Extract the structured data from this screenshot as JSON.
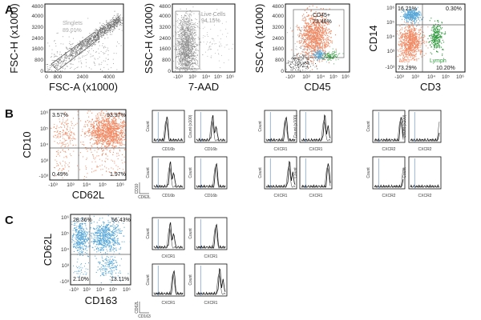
{
  "panel_labels": {
    "a": "A",
    "b": "B",
    "c": "C"
  },
  "plot1": {
    "ylabel": "FSC-H (x1000)",
    "xlabel": "FSC-A (x1000)",
    "yticks": [
      "4800",
      "4000",
      "3200",
      "2400",
      "1600",
      "800",
      "0"
    ],
    "xticks": [
      "0",
      "800",
      "2400",
      "4000"
    ],
    "gate_name": "Singlets",
    "gate_pct": "89.01%"
  },
  "plot2": {
    "ylabel": "SSC-H (x1000)",
    "xlabel": "7-AAD",
    "yticks": [
      "4800",
      "4000",
      "3200",
      "2400",
      "1600",
      "800",
      "0"
    ],
    "xticks": [
      "-10³",
      "10³",
      "10⁴",
      "10⁵",
      "10⁶"
    ],
    "gate_name": "Live Cells",
    "gate_pct": "94.15%"
  },
  "plot3": {
    "ylabel": "SSC-A (x1000)",
    "xlabel": "CD45",
    "yticks": [
      "4800",
      "4000",
      "3200",
      "2400",
      "1600",
      "800",
      "0"
    ],
    "xticks": [
      "-10³",
      "10³",
      "10⁴",
      "10⁵",
      "10⁶"
    ],
    "gate_name": "CD45+",
    "gate_pct": "73.46%"
  },
  "plot4": {
    "ylabel": "CD14",
    "xlabel": "CD3",
    "yticks": [
      "10⁶",
      "10⁵",
      "10⁴",
      "10³",
      "-10³"
    ],
    "xticks": [
      "-10³",
      "10³",
      "10⁴",
      "10⁵",
      "10⁶"
    ],
    "mono_name": "Mono",
    "mono_pct": "16.21%",
    "topright_pct": "0.30%",
    "neu_name": "Neu",
    "neu_pct": "73.29%",
    "lymph_name": "Lymph",
    "lymph_pct": "10.20%"
  },
  "plotB": {
    "ylabel": "CD10",
    "xlabel": "CD62L",
    "yticks": [
      "10⁶",
      "10⁵",
      "10⁴",
      "10³",
      "-10³"
    ],
    "xticks": [
      "-10³",
      "10³",
      "10⁴",
      "10⁵",
      "10⁶"
    ],
    "q_tl": "3.57%",
    "q_tr": "93.97%",
    "q_bl": "0.49%",
    "q_br": "1.97%"
  },
  "plotC": {
    "ylabel": "CD62L",
    "xlabel": "CD163",
    "yticks": [
      "10⁶",
      "10⁵",
      "10⁴",
      "10³",
      "-10³"
    ],
    "xticks": [
      "-10³",
      "10³",
      "10⁴",
      "10⁵",
      "10⁶"
    ],
    "q_tl": "28.36%",
    "q_tr": "56.43%",
    "q_bl": "2.10%",
    "q_br": "13.11%"
  },
  "histo": {
    "ylabel_count": "Count",
    "ylabel_count_scaled": "Count (x100)",
    "group1_marker": "CD16b",
    "group2_marker": "CXCR1",
    "group3_marker": "CXCR2",
    "groupC_marker": "CXCR1"
  },
  "minis": {
    "b_top": "CD10",
    "b_bottom": "CD62L",
    "c_top": "CD62L",
    "c_bottom": "CD163"
  },
  "colors": {
    "neu": "#f08a64",
    "mono": "#5aa8d8",
    "lymph": "#2e9a3c",
    "gray_dots": "#8a8a8a",
    "gate_line": "#555555"
  }
}
